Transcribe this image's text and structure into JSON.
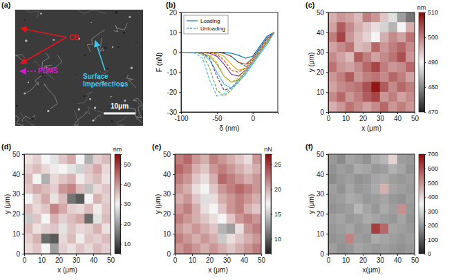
{
  "chart_data": [
    {
      "type": "image",
      "label": "(a)",
      "annotations": [
        {
          "text": "CB",
          "color": "#e8141c"
        },
        {
          "text": "PDMS",
          "color": "#d21ed2"
        },
        {
          "text": "Surface Imperfections",
          "color": "#3cc8f0"
        },
        {
          "text": "10μm",
          "color": "#ffffff"
        }
      ]
    },
    {
      "type": "line",
      "label": "(b)",
      "xlabel": "δ (nm)",
      "ylabel": "F (nN)",
      "x": [
        -100,
        -90,
        -80,
        -70,
        -60,
        -50,
        -40,
        -30,
        -20,
        -10,
        0,
        10,
        20,
        30
      ],
      "xlim": [
        -100,
        35
      ],
      "xticks": [
        -100,
        -50,
        0
      ],
      "ylim": [
        -30,
        20
      ],
      "yticks": [
        -30,
        -20,
        -10,
        0,
        10,
        20
      ],
      "legend": "upper left",
      "series": [
        {
          "name": "Loading",
          "color": "#0072bd",
          "line_style": "solid",
          "values": [
            0,
            0,
            0,
            0,
            0,
            0,
            0,
            -0.5,
            -1.5,
            -3,
            -2,
            3,
            8,
            10
          ]
        },
        {
          "color": "#d95319",
          "line_style": "solid",
          "values": [
            0,
            0,
            0,
            0,
            0,
            0,
            -0.5,
            -2,
            -5,
            -6,
            -3,
            2,
            7,
            10
          ]
        },
        {
          "color": "#edb120",
          "line_style": "solid",
          "values": [
            0,
            0,
            0,
            0,
            0,
            -0.5,
            -2,
            -6,
            -9,
            -8,
            -4,
            1,
            6,
            10
          ]
        },
        {
          "color": "#7e2f8e",
          "line_style": "solid",
          "values": [
            0,
            0,
            0,
            0,
            -0.5,
            -2,
            -6,
            -11,
            -12,
            -9,
            -5,
            0,
            5,
            10
          ]
        },
        {
          "color": "#77ac30",
          "line_style": "solid",
          "values": [
            0,
            0,
            0,
            -0.5,
            -2,
            -6,
            -12,
            -15,
            -14,
            -10,
            -5,
            0,
            5,
            10
          ]
        },
        {
          "color": "#4dbeee",
          "line_style": "solid",
          "values": [
            0,
            0,
            0,
            -1,
            -4,
            -10,
            -16,
            -18,
            -15,
            -11,
            -6,
            -1,
            4,
            10
          ]
        },
        {
          "name": "Unloading",
          "color": "#0072bd",
          "line_style": "dashed",
          "values": [
            0,
            0,
            0,
            0,
            0,
            0,
            -0.5,
            -2,
            -5,
            -7,
            -3,
            2,
            7,
            10
          ]
        },
        {
          "color": "#d95319",
          "line_style": "dashed",
          "values": [
            0,
            0,
            0,
            0,
            0,
            -1,
            -4,
            -9,
            -10,
            -8,
            -4,
            1,
            6,
            10
          ]
        },
        {
          "color": "#edb120",
          "line_style": "dashed",
          "values": [
            0,
            0,
            0,
            0,
            -1,
            -5,
            -12,
            -15,
            -13,
            -9,
            -5,
            0,
            5,
            10
          ]
        },
        {
          "color": "#7e2f8e",
          "line_style": "dashed",
          "values": [
            0,
            0,
            0,
            -0.5,
            -3,
            -12,
            -19,
            -18,
            -14,
            -10,
            -5,
            0,
            5,
            10
          ]
        },
        {
          "color": "#77ac30",
          "line_style": "dashed",
          "values": [
            0,
            0,
            0,
            -1,
            -8,
            -19,
            -22,
            -19,
            -15,
            -10,
            -5,
            0,
            5,
            10
          ]
        },
        {
          "color": "#4dbeee",
          "line_style": "dashed",
          "values": [
            0,
            0,
            -0.5,
            -3,
            -14,
            -22,
            -21,
            -18,
            -14,
            -10,
            -5,
            0,
            5,
            10
          ]
        }
      ]
    },
    {
      "type": "heatmap",
      "label": "(c)",
      "xlabel": "x (μm)",
      "ylabel": "y (μm)",
      "xlim": [
        0,
        50
      ],
      "ylim": [
        0,
        50
      ],
      "xticks": [
        0,
        10,
        20,
        30,
        40,
        50
      ],
      "yticks": [
        0,
        10,
        20,
        30,
        40,
        50
      ],
      "x": [
        2.5,
        7.5,
        12.5,
        17.5,
        22.5,
        27.5,
        32.5,
        37.5,
        42.5,
        47.5
      ],
      "y": [
        47.5,
        42.5,
        37.5,
        32.5,
        27.5,
        22.5,
        17.5,
        12.5,
        7.5,
        2.5
      ],
      "z": [
        [
          496,
          498,
          497,
          495,
          500,
          498,
          494,
          488,
          482,
          478
        ],
        [
          497,
          503,
          499,
          496,
          494,
          492,
          487,
          484,
          490,
          496
        ],
        [
          500,
          505,
          498,
          495,
          493,
          490,
          496,
          499,
          497,
          501
        ],
        [
          497,
          499,
          501,
          495,
          496,
          502,
          498,
          500,
          502,
          499
        ],
        [
          499,
          497,
          495,
          503,
          500,
          497,
          499,
          501,
          504,
          498
        ],
        [
          501,
          498,
          497,
          499,
          502,
          505,
          500,
          498,
          499,
          502
        ],
        [
          498,
          500,
          503,
          498,
          500,
          501,
          499,
          502,
          500,
          497
        ],
        [
          497,
          499,
          500,
          501,
          504,
          509,
          503,
          499,
          502,
          500
        ],
        [
          499,
          502,
          498,
          500,
          503,
          505,
          498,
          500,
          497,
          499
        ],
        [
          496,
          498,
          501,
          499,
          497,
          499,
          502,
          498,
          500,
          498
        ]
      ],
      "colorbar": {
        "range": [
          470,
          510
        ],
        "ticks": [
          470,
          480,
          490,
          500,
          510
        ],
        "label": "nm"
      }
    },
    {
      "type": "heatmap",
      "label": "(d)",
      "xlabel": "x (μm)",
      "ylabel": "y (μm)",
      "xlim": [
        0,
        50
      ],
      "ylim": [
        0,
        50
      ],
      "xticks": [
        0,
        10,
        20,
        30,
        40,
        50
      ],
      "yticks": [
        0,
        10,
        20,
        30,
        40,
        50
      ],
      "x": [
        2.5,
        7.5,
        12.5,
        17.5,
        22.5,
        27.5,
        32.5,
        37.5,
        42.5,
        47.5
      ],
      "y": [
        47.5,
        42.5,
        37.5,
        32.5,
        27.5,
        22.5,
        17.5,
        12.5,
        7.5,
        2.5
      ],
      "z": [
        [
          32,
          34,
          30,
          28,
          35,
          38,
          30,
          22,
          34,
          36
        ],
        [
          34,
          36,
          33,
          31,
          30,
          28,
          26,
          35,
          38,
          33
        ],
        [
          36,
          30,
          22,
          33,
          35,
          37,
          31,
          34,
          36,
          32
        ],
        [
          35,
          38,
          36,
          34,
          40,
          42,
          36,
          24,
          33,
          35
        ],
        [
          30,
          34,
          38,
          32,
          36,
          15,
          12,
          30,
          37,
          34
        ],
        [
          36,
          33,
          35,
          42,
          38,
          34,
          33,
          36,
          31,
          35
        ],
        [
          25,
          35,
          30,
          37,
          34,
          36,
          38,
          14,
          28,
          36
        ],
        [
          36,
          32,
          34,
          35,
          28,
          35,
          33,
          34,
          37,
          32
        ],
        [
          34,
          37,
          14,
          12,
          33,
          36,
          31,
          35,
          34,
          36
        ],
        [
          33,
          35,
          30,
          20,
          34,
          32,
          35,
          33,
          36,
          34
        ]
      ],
      "colorbar": {
        "range": [
          5,
          55
        ],
        "ticks": [
          10,
          20,
          30,
          40,
          50
        ],
        "label": "nm"
      }
    },
    {
      "type": "heatmap",
      "label": "(e)",
      "xlabel": "x (μm)",
      "ylabel": "y (μm)",
      "xlim": [
        0,
        50
      ],
      "ylim": [
        0,
        50
      ],
      "xticks": [
        0,
        10,
        20,
        30,
        40,
        50
      ],
      "yticks": [
        0,
        10,
        20,
        30,
        40,
        50
      ],
      "x": [
        2.5,
        7.5,
        12.5,
        17.5,
        22.5,
        27.5,
        32.5,
        37.5,
        42.5,
        47.5
      ],
      "y": [
        47.5,
        42.5,
        37.5,
        32.5,
        27.5,
        22.5,
        17.5,
        12.5,
        7.5,
        2.5
      ],
      "z": [
        [
          22,
          23,
          21,
          20,
          22,
          21,
          20,
          19,
          18,
          21
        ],
        [
          23,
          22,
          20,
          19,
          21,
          22,
          21,
          20,
          19,
          20
        ],
        [
          22,
          21,
          19,
          18,
          20,
          23,
          22,
          21,
          20,
          21
        ],
        [
          21,
          20,
          18,
          17,
          19,
          21,
          22,
          23,
          22,
          21
        ],
        [
          20,
          21,
          19,
          16,
          18,
          20,
          21,
          22,
          21,
          20
        ],
        [
          21,
          22,
          20,
          18,
          17,
          19,
          21,
          22,
          20,
          19
        ],
        [
          22,
          21,
          20,
          19,
          18,
          17,
          19,
          21,
          22,
          21
        ],
        [
          21,
          20,
          21,
          20,
          19,
          14,
          13,
          18,
          21,
          22
        ],
        [
          22,
          21,
          20,
          21,
          20,
          15,
          18,
          19,
          20,
          21
        ],
        [
          21,
          22,
          21,
          20,
          21,
          20,
          19,
          20,
          21,
          22
        ]
      ],
      "colorbar": {
        "range": [
          7,
          27
        ],
        "ticks": [
          10,
          15,
          20,
          25
        ],
        "label": "nN"
      }
    },
    {
      "type": "heatmap",
      "label": "(f)",
      "xlabel": "x(μm)",
      "ylabel": "y (μm)",
      "xlim": [
        0,
        50
      ],
      "ylim": [
        0,
        50
      ],
      "xticks": [
        0,
        10,
        20,
        30,
        40,
        50
      ],
      "yticks": [
        0,
        10,
        20,
        30,
        40,
        50
      ],
      "x": [
        2.5,
        7.5,
        12.5,
        17.5,
        22.5,
        27.5,
        32.5,
        37.5,
        42.5,
        47.5
      ],
      "y": [
        47.5,
        42.5,
        37.5,
        32.5,
        27.5,
        22.5,
        17.5,
        12.5,
        7.5,
        2.5
      ],
      "z": [
        [
          200,
          180,
          220,
          210,
          190,
          230,
          250,
          400,
          210,
          200
        ],
        [
          190,
          210,
          200,
          230,
          220,
          200,
          210,
          240,
          220,
          190
        ],
        [
          180,
          200,
          210,
          190,
          200,
          220,
          230,
          210,
          200,
          210
        ],
        [
          210,
          190,
          220,
          200,
          210,
          230,
          450,
          220,
          210,
          200
        ],
        [
          200,
          210,
          230,
          220,
          200,
          210,
          220,
          200,
          190,
          210
        ],
        [
          190,
          200,
          210,
          250,
          220,
          200,
          230,
          210,
          500,
          200
        ],
        [
          210,
          220,
          200,
          210,
          230,
          220,
          210,
          200,
          220,
          190
        ],
        [
          200,
          210,
          220,
          200,
          210,
          620,
          560,
          220,
          210,
          200
        ],
        [
          190,
          200,
          520,
          210,
          200,
          230,
          220,
          210,
          200,
          210
        ],
        [
          210,
          190,
          200,
          220,
          210,
          200,
          210,
          200,
          190,
          200
        ]
      ],
      "colorbar": {
        "range": [
          0,
          700
        ],
        "ticks": [
          0,
          100,
          200,
          300,
          400,
          500,
          600,
          700
        ]
      }
    }
  ]
}
